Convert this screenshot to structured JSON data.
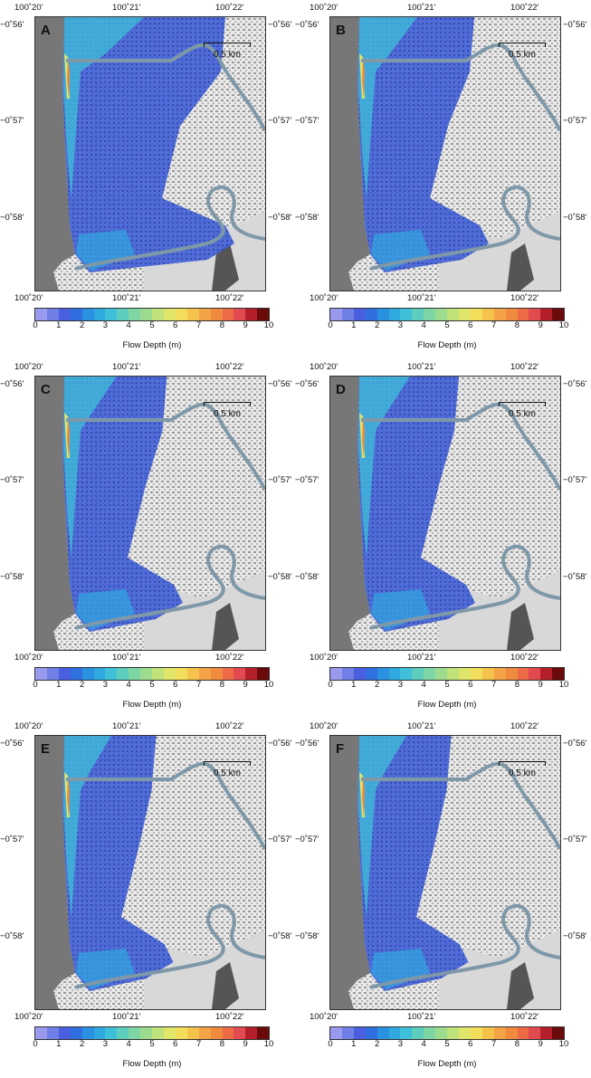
{
  "figure": {
    "panels": [
      {
        "letter": "A",
        "inundation_extent": 1.0
      },
      {
        "letter": "B",
        "inundation_extent": 0.7
      },
      {
        "letter": "C",
        "inundation_extent": 0.62
      },
      {
        "letter": "D",
        "inundation_extent": 0.6
      },
      {
        "letter": "E",
        "inundation_extent": 0.55
      },
      {
        "letter": "F",
        "inundation_extent": 0.55
      }
    ],
    "lon_labels": [
      "100˚20'",
      "100˚21'",
      "100˚22'"
    ],
    "lat_labels": [
      "−0˚56'",
      "−0˚57'",
      "−0˚58'"
    ],
    "scale_label": "0.5 km",
    "colorbar": {
      "title": "Flow Depth (m)",
      "ticks": [
        "0",
        "1",
        "2",
        "3",
        "4",
        "5",
        "6",
        "7",
        "8",
        "9",
        "10"
      ],
      "colors": [
        "#9999ee",
        "#6f7fe6",
        "#4a5fe0",
        "#2f6fe0",
        "#2a90e0",
        "#30a8e0",
        "#3fc0d8",
        "#5dcdbd",
        "#7fd6a5",
        "#9ddc8f",
        "#bfe27a",
        "#dfe66a",
        "#f2de5a",
        "#f5c24c",
        "#f3a345",
        "#ef8a3e",
        "#ec6a46",
        "#e24a50",
        "#b51f2a",
        "#6b0a0a"
      ]
    },
    "colors": {
      "ocean": "#777777",
      "river": "#7f98a8",
      "land": "#e9e9e9"
    }
  }
}
